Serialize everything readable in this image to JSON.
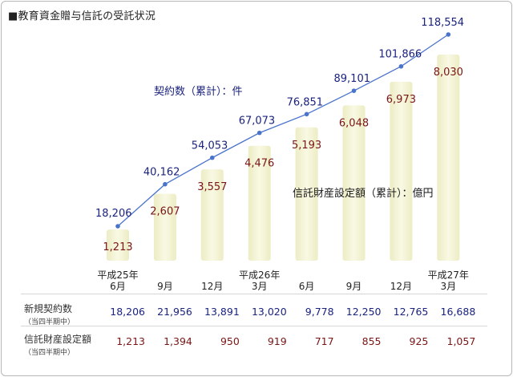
{
  "page_title": "■教育資金贈与信託の受託状況",
  "colors": {
    "bar_fill": "#ececc4",
    "bar_edge": "#f9f9e4",
    "line": "#4a74cc",
    "contract_text": "#1a237e",
    "amount_text": "#7a1515"
  },
  "chart_data": {
    "type": "bar+line",
    "categories": [
      "平成25年6月",
      "9月",
      "12月",
      "平成26年3月",
      "6月",
      "9月",
      "12月",
      "平成27年3月"
    ],
    "x_labels": [
      {
        "line1": "平成25年",
        "line2": "6月"
      },
      {
        "line1": "",
        "line2": "9月"
      },
      {
        "line1": "",
        "line2": "12月"
      },
      {
        "line1": "平成26年",
        "line2": "3月"
      },
      {
        "line1": "",
        "line2": "6月"
      },
      {
        "line1": "",
        "line2": "9月"
      },
      {
        "line1": "",
        "line2": "12月"
      },
      {
        "line1": "平成27年",
        "line2": "3月"
      }
    ],
    "series": [
      {
        "name": "契約数（累計）：件",
        "type": "line",
        "values": [
          18206,
          40162,
          54053,
          67073,
          76851,
          89101,
          101866,
          118554
        ],
        "labels": [
          "18,206",
          "40,162",
          "54,053",
          "67,073",
          "76,851",
          "89,101",
          "101,866",
          "118,554"
        ]
      },
      {
        "name": "信託財産設定額（累計）：億円",
        "type": "bar",
        "values": [
          1213,
          2607,
          3557,
          4476,
          5193,
          6048,
          6973,
          8030
        ],
        "labels": [
          "1,213",
          "2,607",
          "3,557",
          "4,476",
          "5,193",
          "6,048",
          "6,973",
          "8,030"
        ]
      }
    ]
  },
  "table": {
    "rows": [
      {
        "label": "新規契約数",
        "sublabel": "（当四半期中）",
        "values": [
          "18,206",
          "21,956",
          "13,891",
          "13,020",
          "9,778",
          "12,250",
          "12,765",
          "16,688"
        ]
      },
      {
        "label": "信託財産設定額",
        "sublabel": "（当四半期中）",
        "values": [
          "1,213",
          "1,394",
          "950",
          "919",
          "717",
          "855",
          "925",
          "1,057"
        ]
      }
    ]
  }
}
